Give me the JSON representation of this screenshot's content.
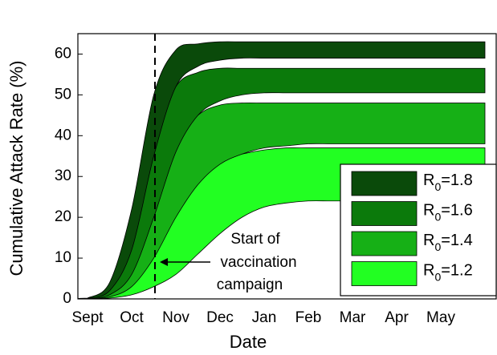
{
  "chart_data": {
    "type": "band",
    "xlabel": "Date",
    "ylabel": "Cumulative Attack Rate (%)",
    "categories": [
      "Sept",
      null,
      "Oct",
      null,
      "Nov",
      null,
      "Dec",
      null,
      "Jan",
      null,
      "Feb",
      null,
      "Mar",
      null,
      "Apr",
      null,
      "May",
      null,
      null
    ],
    "ylim": [
      0,
      65
    ],
    "yticks": [
      0,
      10,
      20,
      30,
      40,
      50,
      60
    ],
    "grid": false,
    "legend": "lower right",
    "annotation": [
      "Start of",
      "vaccination",
      "campaign"
    ],
    "series": [
      {
        "name": "R0=1.2",
        "color": "#22ff22",
        "upper": [
          0,
          0.8,
          4.5,
          13,
          23,
          30,
          34,
          35.5,
          36.5,
          37,
          37,
          37,
          37,
          37,
          37,
          37,
          37,
          37,
          37
        ],
        "lower": [
          0,
          0.2,
          1,
          3,
          6,
          11,
          16,
          20,
          22.5,
          23.5,
          24,
          24,
          24,
          24,
          24,
          24,
          24,
          24,
          24
        ]
      },
      {
        "name": "R0=1.4",
        "color": "#16b016",
        "upper": [
          0,
          1.5,
          8,
          24,
          38,
          45,
          47.5,
          48,
          48,
          48,
          48,
          48,
          48,
          48,
          48,
          48,
          48,
          48,
          48
        ],
        "lower": [
          0,
          0.5,
          3,
          10,
          20,
          28,
          33,
          35.5,
          37,
          37.5,
          38,
          38,
          38,
          38,
          38,
          38,
          38,
          38,
          38
        ]
      },
      {
        "name": "R0=1.6",
        "color": "#0b7a0b",
        "upper": [
          0.1,
          2.5,
          14,
          38,
          52,
          55.5,
          56.5,
          56.5,
          56.5,
          56.5,
          56.5,
          56.5,
          56.5,
          56.5,
          56.5,
          56.5,
          56.5,
          56.5,
          56.5
        ],
        "lower": [
          0,
          1,
          6,
          20,
          36,
          45,
          48.5,
          50,
          50.5,
          50.5,
          50.5,
          50.5,
          50.5,
          50.5,
          50.5,
          50.5,
          50.5,
          50.5,
          50.5
        ]
      },
      {
        "name": "R0=1.8",
        "color": "#0a4a0a",
        "upper": [
          0.2,
          4,
          22,
          50,
          61,
          62.5,
          63,
          63,
          63,
          63,
          63,
          63,
          63,
          63,
          63,
          63,
          63,
          63,
          63
        ],
        "lower": [
          0.1,
          2,
          12,
          35,
          52,
          57,
          58.5,
          59,
          59,
          59,
          59,
          59,
          59,
          59,
          59,
          59,
          59,
          59,
          59
        ]
      }
    ]
  }
}
